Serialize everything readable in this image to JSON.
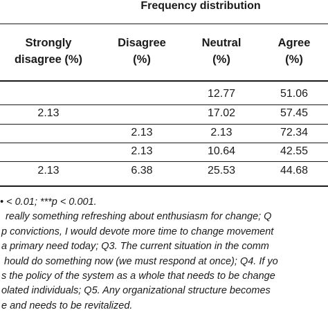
{
  "table": {
    "group_header": "Frequency distribution",
    "columns": [
      {
        "line1": "Strongly",
        "line2": "disagree (%)"
      },
      {
        "line1": "Disagree",
        "line2": "(%)"
      },
      {
        "line1": "Neutral",
        "line2": "(%)"
      },
      {
        "line1": "Agree",
        "line2": "(%)"
      }
    ],
    "rows": [
      [
        "",
        "",
        "12.77",
        "51.06"
      ],
      [
        "2.13",
        "",
        "17.02",
        "57.45"
      ],
      [
        "",
        "2.13",
        "2.13",
        "72.34"
      ],
      [
        "",
        "2.13",
        "10.64",
        "42.55"
      ],
      [
        "2.13",
        "6.38",
        "25.53",
        "44.68"
      ]
    ]
  },
  "notes": [
    "• < 0.01; ***p < 0.001.",
    "really something refreshing about enthusiasm for change; Q",
    "p convictions, I would devote more time to change movement",
    "a primary need today; Q3. The current situation in the comm",
    "hould do something now (we must respond at once); Q4. If yo",
    "s the policy of the system as a whole that needs to be change",
    "olated individuals; Q5. Any organizational structure becomes",
    "e and needs to be revitalized."
  ]
}
